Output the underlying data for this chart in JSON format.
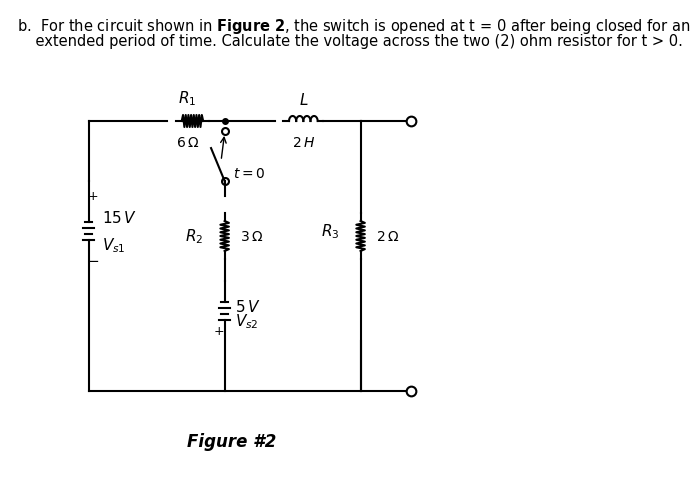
{
  "title_text": "b.  For the circuit shown in **Figure 2**, the switch is opened at t = 0 after being closed for an\n    extended period of time. Calculate the voltage across the two (2) ohm resistor for t > 0.",
  "figure_label": "Figure #2",
  "background_color": "#ffffff",
  "line_color": "#000000",
  "font_size_body": 11,
  "font_size_label": 10,
  "components": {
    "Vs1": {
      "value": "15 V",
      "label": "V_{s1}"
    },
    "R1": {
      "value": "6Ω",
      "label": "R_1"
    },
    "L": {
      "value": "2 H",
      "label": "L"
    },
    "R2": {
      "value": "3Ω",
      "label": "R_2"
    },
    "Vs2": {
      "value": "5 V",
      "label": "V_{s2}"
    },
    "R3": {
      "value": "2Ω",
      "label": "R_3"
    },
    "switch_label": "t = 0"
  }
}
